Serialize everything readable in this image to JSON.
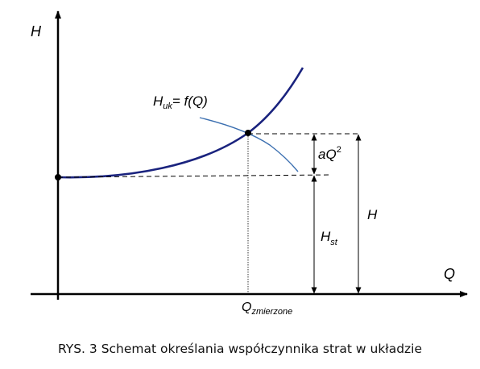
{
  "diagram": {
    "y_axis_label": "H",
    "x_axis_label": "Q",
    "curve_label": {
      "main": "H",
      "sub": "uk",
      "rest": "= f(Q)"
    },
    "aq2_label": {
      "main": "aQ",
      "sup": "2"
    },
    "hst_label": {
      "main": "H",
      "sub": "st"
    },
    "h_label": "H",
    "q_measured_label": {
      "main": "Q",
      "sub": "zmierzone"
    }
  },
  "caption": "RYS. 3 Schemat określania współczynnika strat w układzie",
  "colors": {
    "curve": "#1a237e",
    "pump_curve": "#3b6fb0",
    "axes": "#000000",
    "dashes": "#000000"
  }
}
